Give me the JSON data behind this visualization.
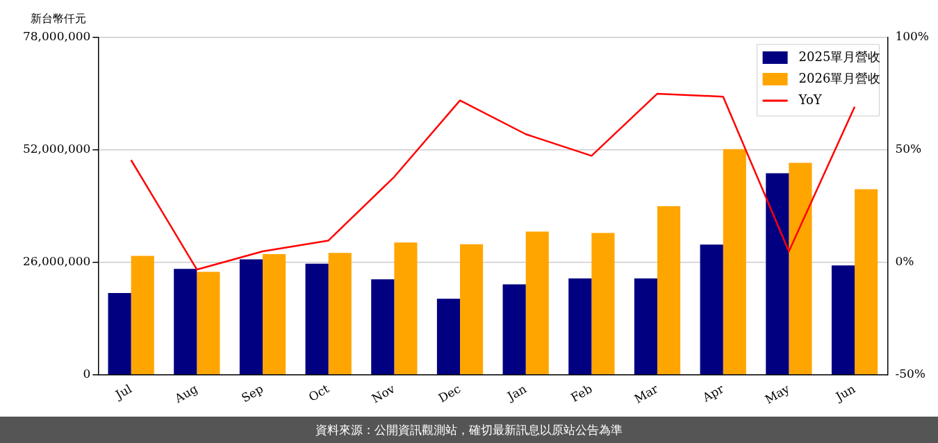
{
  "chart_data": {
    "type": "bar",
    "ylabel": "新台幣仟元",
    "categories": [
      "Jul",
      "Aug",
      "Sep",
      "Oct",
      "Nov",
      "Dec",
      "Jan",
      "Feb",
      "Mar",
      "Apr",
      "May",
      "Jun"
    ],
    "series": [
      {
        "name": "2025單月營收",
        "color": "#000080",
        "values": [
          18900000,
          24500000,
          26700000,
          25700000,
          22100000,
          17600000,
          20900000,
          22300000,
          22300000,
          30100000,
          46600000,
          25300000
        ]
      },
      {
        "name": "2026單月營收",
        "color": "#ffa500",
        "values": [
          27500000,
          23800000,
          27900000,
          28200000,
          30600000,
          30200000,
          33100000,
          32800000,
          39000000,
          52200000,
          49000000,
          42900000
        ]
      },
      {
        "name": "YoY",
        "type": "line",
        "axis": "y2",
        "color": "#ff0000",
        "values": [
          45.5,
          -3.2,
          4.9,
          9.7,
          38,
          72,
          57,
          47.4,
          75,
          73.7,
          4.9,
          69.2
        ]
      }
    ],
    "ylim": [
      0,
      78000000
    ],
    "yticks": [
      0,
      {
        "value": 26000000,
        "label": "26,000,000"
      },
      {
        "value": 52000000,
        "label": "52,000,000"
      },
      {
        "value": 78000000,
        "label": "78,000,000"
      }
    ],
    "y2lim": [
      -50,
      100
    ],
    "y2ticks": [
      {
        "value": -50,
        "label": "-50%"
      },
      {
        "value": 0,
        "label": "0%"
      },
      {
        "value": 50,
        "label": "50%"
      },
      {
        "value": 100,
        "label": "100%"
      }
    ],
    "grid": "y",
    "legend": "top right",
    "marker": "none",
    "line_style": "solid",
    "annotations": [
      "資料來源：公開資訊觀測站，確切最新訊息以原站公告為準"
    ]
  }
}
